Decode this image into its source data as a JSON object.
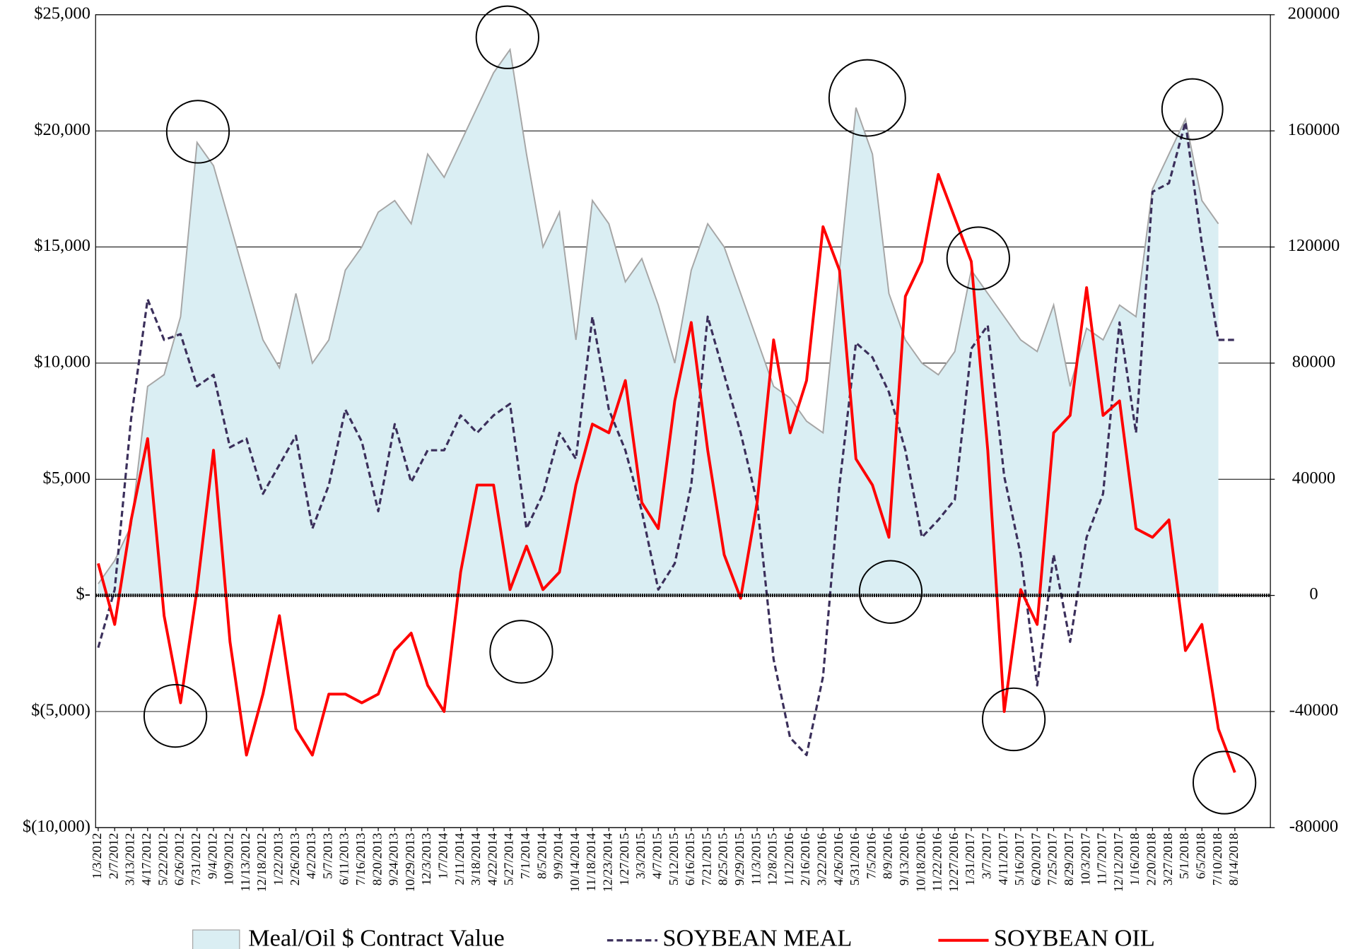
{
  "chart_data": {
    "type": "area-line",
    "categories": [
      "1/3/2012",
      "2/7/2012",
      "3/13/2012",
      "4/17/2012",
      "5/22/2012",
      "6/26/2012",
      "7/31/2012",
      "9/4/2012",
      "10/9/2012",
      "11/13/2012",
      "12/18/2012",
      "1/22/2013",
      "2/26/2013",
      "4/2/2013",
      "5/7/2013",
      "6/11/2013",
      "7/16/2013",
      "8/20/2013",
      "9/24/2013",
      "10/29/2013",
      "12/3/2013",
      "1/7/2014",
      "2/11/2014",
      "3/18/2014",
      "4/22/2014",
      "5/27/2014",
      "7/1/2014",
      "8/5/2014",
      "9/9/2014",
      "10/14/2014",
      "11/18/2014",
      "12/23/2014",
      "1/27/2015",
      "3/3/2015",
      "4/7/2015",
      "5/12/2015",
      "6/16/2015",
      "7/21/2015",
      "8/25/2015",
      "9/29/2015",
      "11/3/2015",
      "12/8/2015",
      "1/12/2016",
      "2/16/2016",
      "3/22/2016",
      "4/26/2016",
      "5/31/2016",
      "7/5/2016",
      "8/9/2016",
      "9/13/2016",
      "10/18/2016",
      "11/22/2016",
      "12/27/2016",
      "1/31/2017",
      "3/7/2017",
      "4/11/2017",
      "5/16/2017",
      "6/20/2017",
      "7/25/2017",
      "8/29/2017",
      "10/3/2017",
      "11/7/2017",
      "12/12/2017",
      "1/16/2018",
      "2/20/2018",
      "3/27/2018",
      "5/1/2018",
      "6/5/2018",
      "7/10/2018",
      "8/14/2018"
    ],
    "series": [
      {
        "name": "Meal/Oil $ Contract Value",
        "kind": "area",
        "axis": "y",
        "color": "#daeef3",
        "line_color": "#a6a6a6",
        "values": [
          500,
          1500,
          3000,
          9000,
          9500,
          12000,
          19500,
          18500,
          16000,
          13500,
          11000,
          9800,
          13000,
          10000,
          11000,
          14000,
          15000,
          16500,
          17000,
          16000,
          19000,
          18000,
          19500,
          21000,
          22500,
          23500,
          19000,
          15000,
          16500,
          11000,
          17000,
          16000,
          13500,
          14500,
          12500,
          10000,
          14000,
          16000,
          15000,
          13000,
          11000,
          9000,
          8500,
          7500,
          7000,
          14000,
          21000,
          19000,
          13000,
          11000,
          10000,
          9500,
          10500,
          14000,
          13000,
          12000,
          11000,
          10500,
          12500,
          9000,
          11500,
          11000,
          12500,
          12000,
          17500,
          19000,
          20500,
          17000,
          16000,
          null
        ]
      },
      {
        "name": "SOYBEAN MEAL",
        "kind": "line",
        "dash": true,
        "axis": "y2",
        "color": "#3b2f5b",
        "values": [
          -18000,
          2000,
          61000,
          102000,
          88000,
          90000,
          72000,
          76000,
          51000,
          54000,
          35000,
          45000,
          55000,
          23000,
          38000,
          64000,
          53000,
          29000,
          59000,
          39000,
          50000,
          50000,
          62000,
          56000,
          62000,
          66000,
          23000,
          35000,
          56000,
          47000,
          96000,
          64000,
          50000,
          29000,
          2000,
          11000,
          38000,
          96000,
          76000,
          56000,
          32000,
          -22000,
          -49000,
          -55000,
          -28000,
          38000,
          87000,
          82000,
          70000,
          50000,
          20000,
          26000,
          33000,
          85000,
          93000,
          41000,
          14000,
          -31000,
          14000,
          -16000,
          20000,
          35000,
          94000,
          56000,
          139000,
          142000,
          163000,
          121000,
          88000,
          88000
        ]
      },
      {
        "name": "SOYBEAN OIL",
        "kind": "line",
        "dash": false,
        "axis": "y2",
        "color": "#ff0000",
        "values": [
          11000,
          -10000,
          26000,
          54000,
          -7000,
          -37000,
          2000,
          50000,
          -16000,
          -55000,
          -34000,
          -7000,
          -46000,
          -55000,
          -34000,
          -34000,
          -37000,
          -34000,
          -19000,
          -13000,
          -31000,
          -40000,
          8000,
          38000,
          38000,
          2000,
          17000,
          2000,
          8000,
          38000,
          59000,
          56000,
          74000,
          32000,
          23000,
          67000,
          94000,
          50000,
          14000,
          -1000,
          32000,
          88000,
          56000,
          74000,
          127000,
          112000,
          47000,
          38000,
          20000,
          103000,
          115000,
          145000,
          130000,
          115000,
          50000,
          -40000,
          2000,
          -10000,
          56000,
          62000,
          106000,
          62000,
          67000,
          23000,
          20000,
          26000,
          -19000,
          -10000,
          -46000,
          -61000
        ]
      }
    ],
    "ylim": [
      -10000,
      25000
    ],
    "yticks": [
      {
        "value": -10000,
        "label": "$(10,000)"
      },
      {
        "value": -5000,
        "label": "$(5,000)"
      },
      {
        "value": 0,
        "label": "$-"
      },
      {
        "value": 5000,
        "label": "$5,000"
      },
      {
        "value": 10000,
        "label": "$10,000"
      },
      {
        "value": 15000,
        "label": "$15,000"
      },
      {
        "value": 20000,
        "label": "$20,000"
      },
      {
        "value": 25000,
        "label": "$25,000"
      }
    ],
    "y2lim": [
      -80000,
      200000
    ],
    "y2ticks": [
      -80000,
      -40000,
      0,
      40000,
      80000,
      120000,
      160000,
      200000
    ],
    "grid": true,
    "legend": "bottom"
  }
}
